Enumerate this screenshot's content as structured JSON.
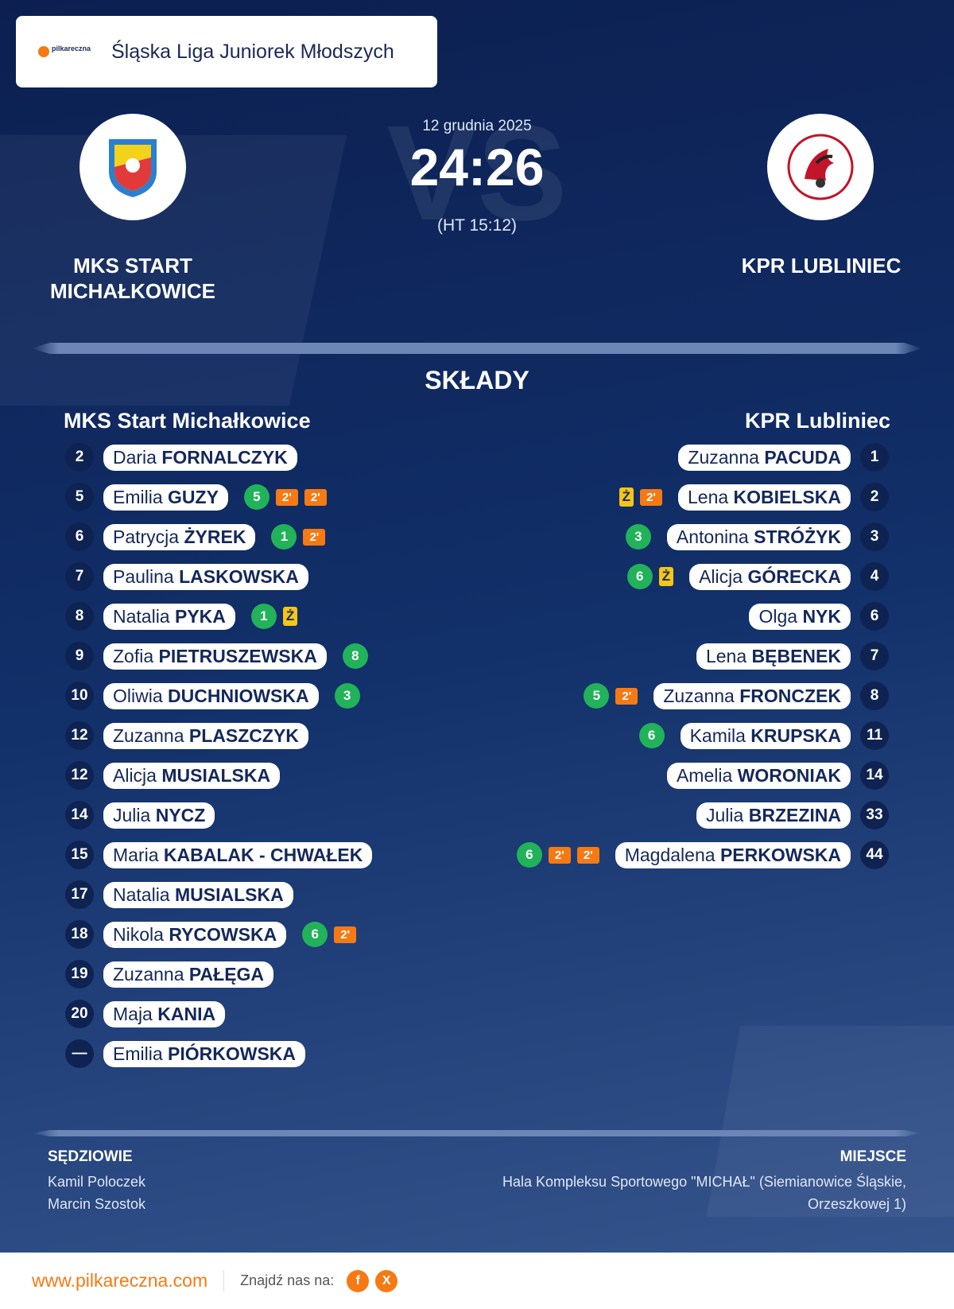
{
  "header": {
    "league": "Śląska Liga Juniorek Młodszych",
    "logo_text": "pilkareczna"
  },
  "match": {
    "date": "12 grudnia 2025",
    "score": "24:26",
    "halftime": "(HT 15:12)",
    "vs": "VS",
    "home": "MKS START MICHAŁKOWICE",
    "away": "KPR LUBLINIEC"
  },
  "lineups": {
    "title": "SKŁADY",
    "home": {
      "name": "MKS Start Michałkowice",
      "players": [
        {
          "number": "2",
          "first": "Daria",
          "last": "FORNALCZYK",
          "events": []
        },
        {
          "number": "5",
          "first": "Emilia",
          "last": "GUZY",
          "events": [
            "5",
            "2'",
            "2'"
          ]
        },
        {
          "number": "6",
          "first": "Patrycja",
          "last": "ŻYREK",
          "events": [
            "1",
            "2'"
          ]
        },
        {
          "number": "7",
          "first": "Paulina",
          "last": "LASKOWSKA",
          "events": []
        },
        {
          "number": "8",
          "first": "Natalia",
          "last": "PYKA",
          "events": [
            "1",
            "Ż"
          ]
        },
        {
          "number": "9",
          "first": "Zofia",
          "last": "PIETRUSZEWSKA",
          "events": [
            "8"
          ]
        },
        {
          "number": "10",
          "first": "Oliwia",
          "last": "DUCHNIOWSKA",
          "events": [
            "3"
          ]
        },
        {
          "number": "12",
          "first": "Zuzanna",
          "last": "PLASZCZYK",
          "events": []
        },
        {
          "number": "12",
          "first": "Alicja",
          "last": "MUSIALSKA",
          "events": []
        },
        {
          "number": "14",
          "first": "Julia",
          "last": "NYCZ",
          "events": []
        },
        {
          "number": "15",
          "first": "Maria",
          "last": "KABALAK - CHWAŁEK",
          "events": []
        },
        {
          "number": "17",
          "first": "Natalia",
          "last": "MUSIALSKA",
          "events": []
        },
        {
          "number": "18",
          "first": "Nikola",
          "last": "RYCOWSKA",
          "events": [
            "6",
            "2'"
          ]
        },
        {
          "number": "19",
          "first": "Zuzanna",
          "last": "PAŁĘGA",
          "events": []
        },
        {
          "number": "20",
          "first": "Maja",
          "last": "KANIA",
          "events": []
        },
        {
          "number": "—",
          "first": "Emilia",
          "last": "PIÓRKOWSKA",
          "events": []
        }
      ]
    },
    "away": {
      "name": "KPR Lubliniec",
      "players": [
        {
          "number": "1",
          "first": "Zuzanna",
          "last": "PACUDA",
          "events": []
        },
        {
          "number": "2",
          "first": "Lena",
          "last": "KOBIELSKA",
          "events": [
            "Ż",
            "2'"
          ]
        },
        {
          "number": "3",
          "first": "Antonina",
          "last": "STRÓŻYK",
          "events": [
            "3"
          ]
        },
        {
          "number": "4",
          "first": "Alicja",
          "last": "GÓRECKA",
          "events": [
            "6",
            "Ż"
          ]
        },
        {
          "number": "6",
          "first": "Olga",
          "last": "NYK",
          "events": []
        },
        {
          "number": "7",
          "first": "Lena",
          "last": "BĘBENEK",
          "events": []
        },
        {
          "number": "8",
          "first": "Zuzanna",
          "last": "FRONCZEK",
          "events": [
            "5",
            "2'"
          ]
        },
        {
          "number": "11",
          "first": "Kamila",
          "last": "KRUPSKA",
          "events": [
            "6"
          ]
        },
        {
          "number": "14",
          "first": "Amelia",
          "last": "WORONIAK",
          "events": []
        },
        {
          "number": "33",
          "first": "Julia",
          "last": "BRZEZINA",
          "events": []
        },
        {
          "number": "44",
          "first": "Magdalena",
          "last": "PERKOWSKA",
          "events": [
            "6",
            "2'",
            "2'"
          ]
        }
      ]
    }
  },
  "officials": {
    "referees_title": "SĘDZIOWIE",
    "referees": [
      "Kamil Poloczek",
      "Marcin Szostok"
    ],
    "venue_title": "MIEJSCE",
    "venue": "Hala Kompleksu Sportowego \"MICHAŁ\" (Siemianowice Śląskie, Orzeszkowej 1)"
  },
  "footer": {
    "url": "www.pilkareczna.com",
    "find_us": "Znajdź nas na:",
    "facebook": "f",
    "x": "X"
  }
}
